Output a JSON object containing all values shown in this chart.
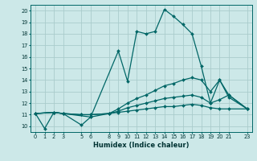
{
  "xlabel": "Humidex (Indice chaleur)",
  "background_color": "#cce8e8",
  "grid_color": "#aacccc",
  "line_color": "#006666",
  "xlim": [
    -0.5,
    23.5
  ],
  "ylim": [
    9.5,
    20.5
  ],
  "yticks": [
    10,
    11,
    12,
    13,
    14,
    15,
    16,
    17,
    18,
    19,
    20
  ],
  "xticks": [
    0,
    1,
    2,
    3,
    5,
    6,
    8,
    9,
    10,
    11,
    12,
    13,
    14,
    15,
    16,
    17,
    18,
    19,
    20,
    21,
    23
  ],
  "lines": [
    {
      "x": [
        0,
        1,
        2,
        3,
        5,
        6,
        9,
        10,
        11,
        12,
        13,
        14,
        15,
        16,
        17,
        18,
        19,
        20,
        21,
        23
      ],
      "y": [
        11.1,
        9.8,
        11.2,
        11.1,
        10.1,
        10.8,
        16.5,
        13.9,
        18.2,
        18.0,
        18.2,
        20.1,
        19.5,
        18.8,
        18.0,
        15.2,
        12.0,
        14.0,
        12.7,
        11.5
      ]
    },
    {
      "x": [
        0,
        2,
        3,
        6,
        8,
        9,
        10,
        11,
        12,
        13,
        14,
        15,
        16,
        17,
        18,
        19,
        20,
        21,
        23
      ],
      "y": [
        11.1,
        11.2,
        11.1,
        10.8,
        11.1,
        11.5,
        12.0,
        12.4,
        12.7,
        13.1,
        13.5,
        13.7,
        14.0,
        14.2,
        14.0,
        13.0,
        14.0,
        12.5,
        11.5
      ]
    },
    {
      "x": [
        0,
        2,
        3,
        5,
        6,
        8,
        9,
        10,
        11,
        12,
        13,
        14,
        15,
        16,
        17,
        18,
        19,
        20,
        21,
        23
      ],
      "y": [
        11.1,
        11.2,
        11.1,
        11.0,
        11.0,
        11.1,
        11.3,
        11.6,
        11.8,
        12.0,
        12.2,
        12.4,
        12.5,
        12.6,
        12.7,
        12.5,
        12.0,
        12.3,
        12.7,
        11.5
      ]
    },
    {
      "x": [
        0,
        2,
        3,
        5,
        6,
        8,
        9,
        10,
        11,
        12,
        13,
        14,
        15,
        16,
        17,
        18,
        19,
        20,
        21,
        23
      ],
      "y": [
        11.1,
        11.2,
        11.1,
        11.0,
        11.0,
        11.1,
        11.2,
        11.3,
        11.4,
        11.5,
        11.6,
        11.7,
        11.7,
        11.8,
        11.9,
        11.8,
        11.6,
        11.5,
        11.5,
        11.5
      ]
    }
  ]
}
